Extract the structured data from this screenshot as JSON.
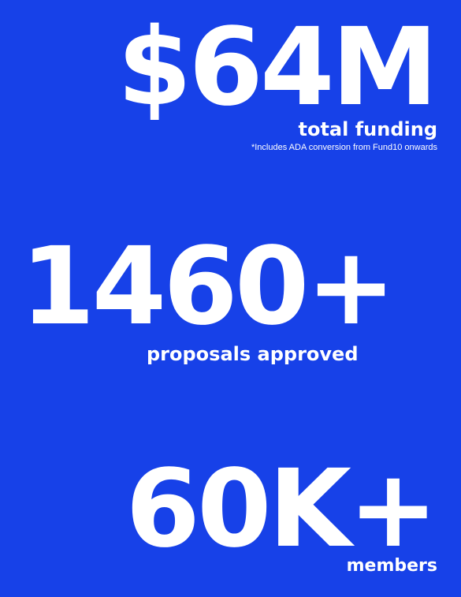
{
  "colors": {
    "background": "#1741E8",
    "text": "#ffffff"
  },
  "stats": {
    "funding": {
      "value": "$64M",
      "label": "total funding",
      "note": "*Includes ADA conversion from Fund10 onwards"
    },
    "proposals": {
      "value": "1460+",
      "label": "proposals approved"
    },
    "members": {
      "value": "60K+",
      "label": "members"
    }
  }
}
